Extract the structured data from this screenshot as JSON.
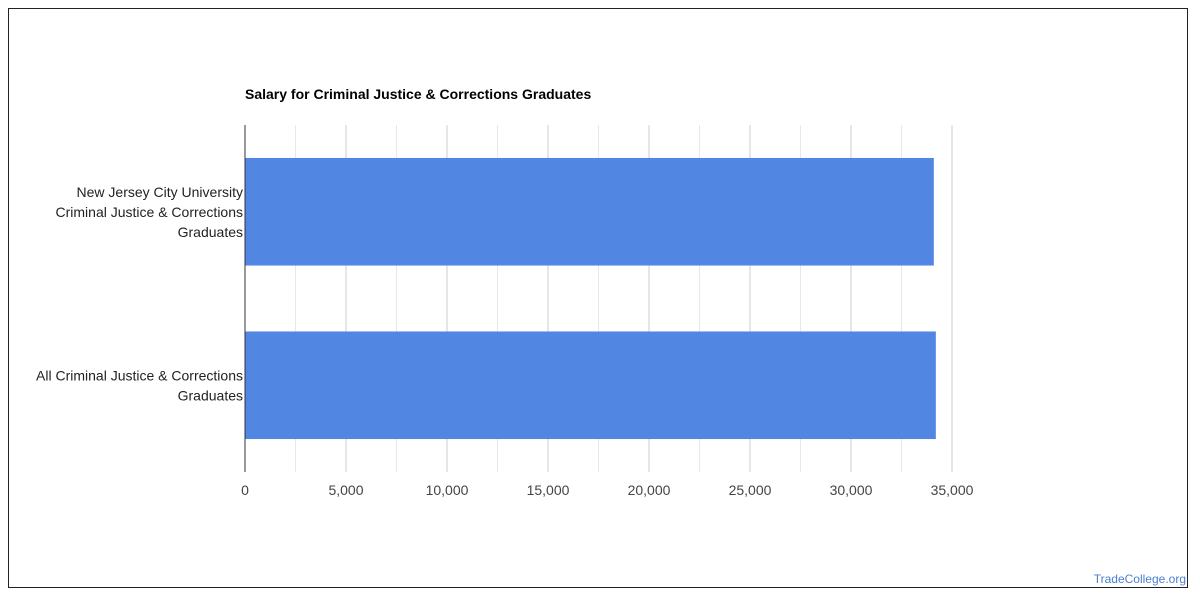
{
  "credit": "TradeCollege.org",
  "colors": {
    "bar": "#5286e3",
    "grid_major": "#cccccc",
    "grid_minor": "#e8e8e8",
    "axis": "#333333"
  },
  "chart_data": {
    "type": "bar",
    "orientation": "horizontal",
    "title": "Salary for Criminal Justice & Corrections Graduates",
    "categories": [
      [
        "New Jersey City University",
        "Criminal Justice & Corrections",
        "Graduates"
      ],
      [
        "All Criminal Justice & Corrections",
        "Graduates"
      ]
    ],
    "values": [
      34100,
      34200
    ],
    "xlim": [
      0,
      35000
    ],
    "xticks": [
      0,
      5000,
      10000,
      15000,
      20000,
      25000,
      30000,
      35000
    ],
    "xtick_labels": [
      "0",
      "5,000",
      "10,000",
      "15,000",
      "20,000",
      "25,000",
      "30,000",
      "35,000"
    ],
    "grid": true,
    "legend": "none"
  }
}
